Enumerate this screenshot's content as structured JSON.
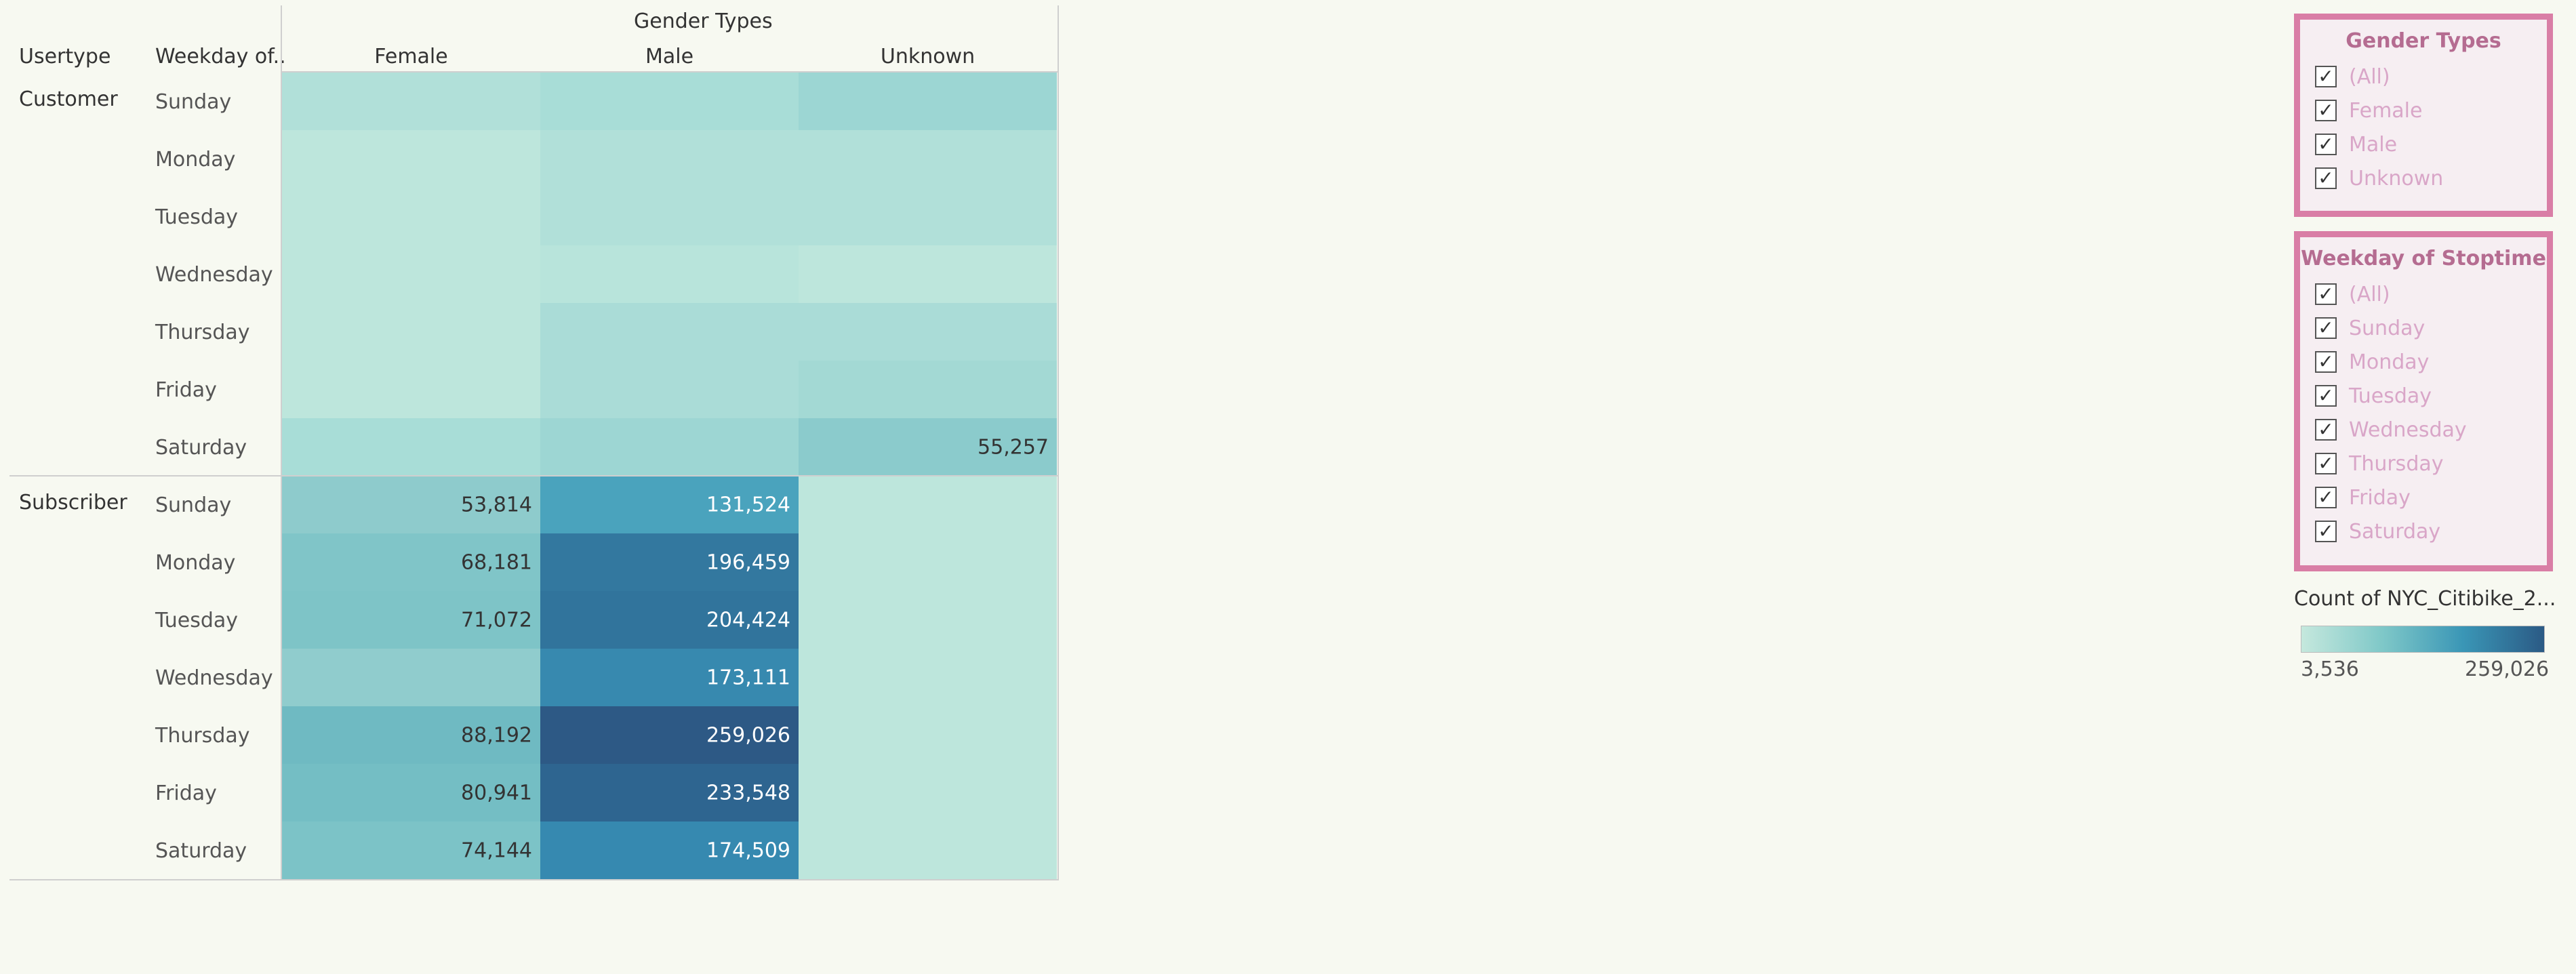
{
  "table": {
    "col_header_group": "Gender Types",
    "row_header_usertype": "Usertype",
    "row_header_weekday": "Weekday of..",
    "columns": [
      "Female",
      "Male",
      "Unknown"
    ],
    "groups": [
      {
        "name": "Customer",
        "rows": [
          {
            "day": "Sunday",
            "colors": [
              "#b1e0d9",
              "#a8ddd7",
              "#9cd6d3"
            ],
            "labels": [
              "",
              "",
              ""
            ]
          },
          {
            "day": "Monday",
            "colors": [
              "#bde6dc",
              "#b1e0d9",
              "#b1e0d9"
            ],
            "labels": [
              "",
              "",
              ""
            ]
          },
          {
            "day": "Tuesday",
            "colors": [
              "#bde6dc",
              "#b1e0d9",
              "#b1e0d9"
            ],
            "labels": [
              "",
              "",
              ""
            ]
          },
          {
            "day": "Wednesday",
            "colors": [
              "#bde6dc",
              "#b8e4db",
              "#bde6dc"
            ],
            "labels": [
              "",
              "",
              ""
            ]
          },
          {
            "day": "Thursday",
            "colors": [
              "#bde6dc",
              "#aadcd7",
              "#aadcd7"
            ],
            "labels": [
              "",
              "",
              ""
            ]
          },
          {
            "day": "Friday",
            "colors": [
              "#bde6dc",
              "#aadcd7",
              "#a3d9d4"
            ],
            "labels": [
              "",
              "",
              ""
            ]
          },
          {
            "day": "Saturday",
            "colors": [
              "#a8ddd7",
              "#9dd6d3",
              "#8bcbcc"
            ],
            "labels": [
              "",
              "",
              "55,257"
            ]
          }
        ]
      },
      {
        "name": "Subscriber",
        "rows": [
          {
            "day": "Sunday",
            "colors": [
              "#8ecbcc",
              "#4aa3bd",
              "#bde6dc"
            ],
            "labels": [
              "53,814",
              "131,524",
              ""
            ]
          },
          {
            "day": "Monday",
            "colors": [
              "#80c5c8",
              "#33789f",
              "#bde6dc"
            ],
            "labels": [
              "68,181",
              "196,459",
              ""
            ]
          },
          {
            "day": "Tuesday",
            "colors": [
              "#7ec4c7",
              "#31749c",
              "#bde6dc"
            ],
            "labels": [
              "71,072",
              "204,424",
              ""
            ]
          },
          {
            "day": "Wednesday",
            "colors": [
              "#90cccd",
              "#3789af",
              "#bde6dc"
            ],
            "labels": [
              "",
              "173,111",
              ""
            ]
          },
          {
            "day": "Thursday",
            "colors": [
              "#6fbac2",
              "#2d5985",
              "#bde6dc"
            ],
            "labels": [
              "88,192",
              "259,026",
              ""
            ]
          },
          {
            "day": "Friday",
            "colors": [
              "#74bec4",
              "#2e6590",
              "#bde6dc"
            ],
            "labels": [
              "80,941",
              "233,548",
              ""
            ]
          },
          {
            "day": "Saturday",
            "colors": [
              "#7cc3c7",
              "#3689b0",
              "#bde6dc"
            ],
            "labels": [
              "74,144",
              "174,509",
              ""
            ]
          }
        ]
      }
    ]
  },
  "filters": {
    "gender": {
      "title": "Gender Types",
      "items": [
        "(All)",
        "Female",
        "Male",
        "Unknown"
      ]
    },
    "weekday": {
      "title": "Weekday of Stoptime",
      "items": [
        "(All)",
        "Sunday",
        "Monday",
        "Tuesday",
        "Wednesday",
        "Thursday",
        "Friday",
        "Saturday"
      ]
    },
    "check_glyph": "✓"
  },
  "legend": {
    "title": "Count of NYC_Citibike_2...",
    "min": "3,536",
    "max": "259,026"
  },
  "colors": {
    "filter_border": "#d97ea6",
    "filter_label": "#d9a6c8",
    "dark_text": "#333333",
    "light_text": "#ffffff"
  }
}
